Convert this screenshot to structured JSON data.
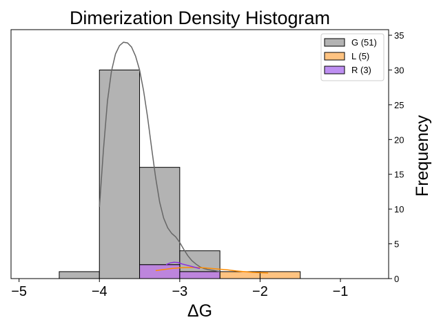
{
  "chart_data": {
    "type": "bar",
    "title": "Dimerization Density Histogram",
    "xlabel": "ΔG",
    "ylabel": "Frequency",
    "xlim": [
      -5.1,
      -0.4
    ],
    "ylim": [
      0,
      35.8
    ],
    "xticks": [
      -5,
      -4,
      -3,
      -2,
      -1
    ],
    "xtick_labels": [
      "−5",
      "−4",
      "−3",
      "−2",
      "−1"
    ],
    "yticks": [
      0,
      5,
      10,
      15,
      20,
      25,
      30,
      35
    ],
    "ytick_labels": [
      "0",
      "5",
      "10",
      "15",
      "20",
      "25",
      "30",
      "35"
    ],
    "grid": false,
    "legend_position": "top-right",
    "series": [
      {
        "name": "G (51)",
        "color": "#a6a6a6",
        "bins": [
          {
            "x0": -5.0,
            "x1": -4.5,
            "count": 0
          },
          {
            "x0": -4.5,
            "x1": -4.0,
            "count": 1
          },
          {
            "x0": -4.0,
            "x1": -3.5,
            "count": 30
          },
          {
            "x0": -3.5,
            "x1": -3.0,
            "count": 16
          },
          {
            "x0": -3.0,
            "x1": -2.5,
            "count": 4
          },
          {
            "x0": -2.5,
            "x1": -2.0,
            "count": 0
          },
          {
            "x0": -2.0,
            "x1": -1.5,
            "count": 0
          },
          {
            "x0": -1.5,
            "x1": -1.0,
            "count": 0
          },
          {
            "x0": -1.0,
            "x1": -0.5,
            "count": 0
          }
        ],
        "kde_color": "#666666",
        "kde": [
          [
            -4.0,
            10.3
          ],
          [
            -3.95,
            18.5
          ],
          [
            -3.9,
            25.5
          ],
          [
            -3.85,
            29.8
          ],
          [
            -3.8,
            32.3
          ],
          [
            -3.75,
            33.5
          ],
          [
            -3.7,
            34.0
          ],
          [
            -3.65,
            33.9
          ],
          [
            -3.6,
            33.3
          ],
          [
            -3.55,
            32.0
          ],
          [
            -3.5,
            30.0
          ],
          [
            -3.45,
            27.0
          ],
          [
            -3.4,
            23.2
          ],
          [
            -3.35,
            18.8
          ],
          [
            -3.3,
            14.5
          ],
          [
            -3.25,
            11.0
          ],
          [
            -3.2,
            8.7
          ],
          [
            -3.15,
            7.3
          ],
          [
            -3.1,
            6.5
          ],
          [
            -3.05,
            6.0
          ],
          [
            -3.0,
            5.2
          ],
          [
            -2.95,
            4.2
          ],
          [
            -2.9,
            3.3
          ],
          [
            -2.85,
            2.6
          ],
          [
            -2.8,
            2.1
          ],
          [
            -2.75,
            1.7
          ],
          [
            -2.7,
            1.45
          ],
          [
            -2.65,
            1.3
          ],
          [
            -2.6,
            1.2
          ],
          [
            -2.55,
            1.1
          ],
          [
            -2.5,
            1.0
          ]
        ]
      },
      {
        "name": "L (5)",
        "color": "#ffb86b",
        "bins": [
          {
            "x0": -3.5,
            "x1": -3.0,
            "count": 2
          },
          {
            "x0": -3.0,
            "x1": -2.5,
            "count": 1
          },
          {
            "x0": -2.5,
            "x1": -2.0,
            "count": 1
          },
          {
            "x0": -2.0,
            "x1": -1.5,
            "count": 1
          }
        ],
        "kde_color": "#ff8c00",
        "kde": [
          [
            -3.3,
            1.15
          ],
          [
            -3.2,
            1.3
          ],
          [
            -3.1,
            1.45
          ],
          [
            -3.0,
            1.55
          ],
          [
            -2.9,
            1.6
          ],
          [
            -2.8,
            1.6
          ],
          [
            -2.7,
            1.55
          ],
          [
            -2.6,
            1.45
          ],
          [
            -2.5,
            1.35
          ],
          [
            -2.4,
            1.25
          ],
          [
            -2.3,
            1.1
          ],
          [
            -2.2,
            1.0
          ],
          [
            -2.1,
            0.9
          ],
          [
            -2.0,
            0.85
          ],
          [
            -1.9,
            0.8
          ]
        ]
      },
      {
        "name": "R (3)",
        "color": "#b37bf0",
        "bins": [
          {
            "x0": -3.5,
            "x1": -3.0,
            "count": 2
          },
          {
            "x0": -3.0,
            "x1": -2.5,
            "count": 1
          }
        ],
        "kde_color": "#8a2be2",
        "kde": [
          [
            -3.17,
            2.0
          ],
          [
            -3.12,
            2.25
          ],
          [
            -3.07,
            2.35
          ],
          [
            -3.02,
            2.3
          ],
          [
            -2.97,
            2.1
          ],
          [
            -2.92,
            1.95
          ],
          [
            -2.87,
            1.8
          ],
          [
            -2.82,
            1.65
          ],
          [
            -2.77,
            1.5
          ],
          [
            -2.75,
            1.45
          ]
        ]
      }
    ]
  }
}
